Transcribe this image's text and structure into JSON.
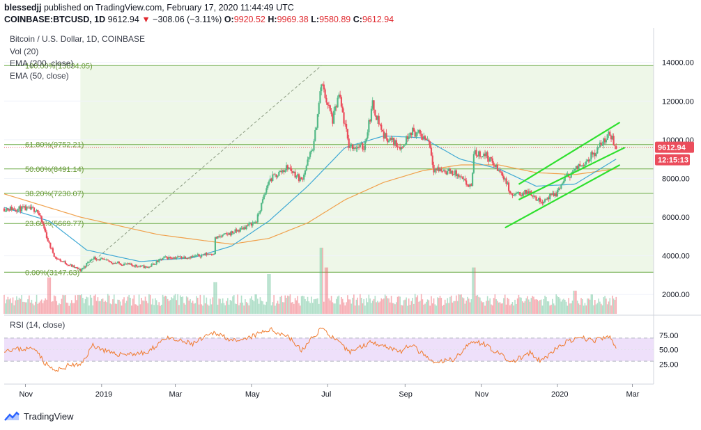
{
  "header": {
    "line1_user": "blessedjj",
    "line1_text": "published on TradingView.com, February 17, 2020 11:44:49 UTC",
    "symbol": "COINBASE:BTCUSD, 1D",
    "last": "9612.94",
    "down_arrow": "▼",
    "change": "−308.06 (−3.11%)",
    "o_label": "O:",
    "o_value": "9920.52",
    "h_label": "H:",
    "h_value": "9969.38",
    "l_label": "L:",
    "l_value": "9580.89",
    "c_label": "C:",
    "c_value": "9612.94"
  },
  "legend": {
    "title": "Bitcoin / U.S. Dollar, 1D, COINBASE",
    "vol": "Vol (20)",
    "ema200": "EMA (200, close)",
    "ema50": "EMA (50, close)"
  },
  "price_badge": "9612.94",
  "time_badge": "12:15:13",
  "rsi_label": "RSI (14, close)",
  "footer_brand": "TradingView",
  "colors": {
    "up": "#53b987",
    "down": "#eb4d5c",
    "ema50": "#3fa9d4",
    "ema200": "#f0a04b",
    "fib": "#6aaa45",
    "channel": "#2ee02e",
    "rsi": "#f07b2e",
    "rsi_band": "#eee0fa",
    "bg_shade": "#eef7e8"
  },
  "chart_data": {
    "type": "candlestick",
    "price_axis": {
      "ticks": [
        2000,
        4000,
        6000,
        8000,
        10000,
        12000,
        14000
      ],
      "tick_labels": [
        "2000.00",
        "4000.00",
        "6000.00",
        "8000.00",
        "10000.00",
        "12000.00",
        "14000.00"
      ],
      "range": [
        1000,
        15500
      ]
    },
    "time_axis": {
      "labels": [
        "Nov",
        "2019",
        "Mar",
        "May",
        "Jul",
        "Sep",
        "Nov",
        "2020",
        "Mar"
      ]
    },
    "fib_levels": [
      {
        "label": "100.00%(13834.05)",
        "price": 13834.05
      },
      {
        "label": "61.80%(9752.21)",
        "price": 9752.21
      },
      {
        "label": "50.00%(8491.14)",
        "price": 8491.14
      },
      {
        "label": "38.20%(7230.07)",
        "price": 7230.07
      },
      {
        "label": "23.60%(5669.77)",
        "price": 5669.77
      },
      {
        "label": "0.00%(3147.63)",
        "price": 3147.63
      }
    ],
    "fib_range": {
      "start": "2018-12-15",
      "end": "2019-06-26"
    },
    "last_price": 9612.94,
    "price_path": [
      [
        "2018-10-15",
        6450
      ],
      [
        "2018-11-10",
        6400
      ],
      [
        "2018-11-15",
        5600
      ],
      [
        "2018-11-20",
        4600
      ],
      [
        "2018-11-25",
        3900
      ],
      [
        "2018-12-07",
        3500
      ],
      [
        "2018-12-15",
        3250
      ],
      [
        "2018-12-25",
        3900
      ],
      [
        "2019-01-10",
        3650
      ],
      [
        "2019-02-07",
        3400
      ],
      [
        "2019-02-20",
        3900
      ],
      [
        "2019-03-15",
        3950
      ],
      [
        "2019-04-01",
        4150
      ],
      [
        "2019-04-02",
        4900
      ],
      [
        "2019-04-20",
        5300
      ],
      [
        "2019-05-05",
        5800
      ],
      [
        "2019-05-15",
        7900
      ],
      [
        "2019-05-30",
        8600
      ],
      [
        "2019-06-10",
        7900
      ],
      [
        "2019-06-20",
        9800
      ],
      [
        "2019-06-26",
        12900
      ],
      [
        "2019-07-05",
        11000
      ],
      [
        "2019-07-10",
        12300
      ],
      [
        "2019-07-18",
        9700
      ],
      [
        "2019-07-30",
        9600
      ],
      [
        "2019-08-06",
        11800
      ],
      [
        "2019-08-15",
        10200
      ],
      [
        "2019-08-30",
        9600
      ],
      [
        "2019-09-05",
        10500
      ],
      [
        "2019-09-20",
        10000
      ],
      [
        "2019-09-24",
        8500
      ],
      [
        "2019-10-10",
        8300
      ],
      [
        "2019-10-24",
        7500
      ],
      [
        "2019-10-26",
        9300
      ],
      [
        "2019-11-05",
        9200
      ],
      [
        "2019-11-20",
        8000
      ],
      [
        "2019-11-25",
        7100
      ],
      [
        "2019-12-10",
        7300
      ],
      [
        "2019-12-18",
        6800
      ],
      [
        "2019-12-31",
        7200
      ],
      [
        "2020-01-07",
        8000
      ],
      [
        "2020-01-20",
        8700
      ],
      [
        "2020-01-31",
        9350
      ],
      [
        "2020-02-09",
        10100
      ],
      [
        "2020-02-12",
        10300
      ],
      [
        "2020-02-17",
        9612.94
      ]
    ],
    "ema50_path": [
      [
        "2018-10-15",
        6500
      ],
      [
        "2018-11-20",
        5800
      ],
      [
        "2018-12-20",
        4300
      ],
      [
        "2019-02-01",
        3700
      ],
      [
        "2019-03-15",
        3900
      ],
      [
        "2019-04-15",
        4500
      ],
      [
        "2019-05-15",
        5800
      ],
      [
        "2019-06-15",
        7600
      ],
      [
        "2019-07-15",
        9600
      ],
      [
        "2019-08-15",
        10200
      ],
      [
        "2019-09-15",
        10100
      ],
      [
        "2019-10-15",
        9000
      ],
      [
        "2019-11-15",
        8500
      ],
      [
        "2019-12-15",
        7600
      ],
      [
        "2020-01-15",
        7700
      ],
      [
        "2020-02-17",
        9000
      ]
    ],
    "ema200_path": [
      [
        "2018-10-15",
        7200
      ],
      [
        "2018-12-15",
        6000
      ],
      [
        "2019-02-15",
        5100
      ],
      [
        "2019-04-15",
        4600
      ],
      [
        "2019-05-15",
        4900
      ],
      [
        "2019-06-15",
        5700
      ],
      [
        "2019-07-15",
        6900
      ],
      [
        "2019-08-15",
        7800
      ],
      [
        "2019-09-15",
        8400
      ],
      [
        "2019-10-15",
        8700
      ],
      [
        "2019-11-15",
        8700
      ],
      [
        "2019-12-15",
        8300
      ],
      [
        "2020-01-15",
        8200
      ],
      [
        "2020-02-17",
        8500
      ]
    ],
    "channel": {
      "upper": [
        [
          "2019-12-01",
          7700
        ],
        [
          "2020-02-20",
          10900
        ]
      ],
      "middle": [
        [
          "2019-12-01",
          6900
        ],
        [
          "2020-02-24",
          9600
        ]
      ],
      "lower": [
        [
          "2019-11-20",
          5450
        ],
        [
          "2020-02-20",
          8700
        ]
      ]
    },
    "rsi": {
      "ticks": [
        25,
        50,
        75
      ],
      "tick_labels": [
        "25.00",
        "50.00",
        "75.00"
      ],
      "bands": [
        30,
        70
      ],
      "path": [
        [
          "2018-10-15",
          50
        ],
        [
          "2018-11-10",
          52
        ],
        [
          "2018-11-15",
          30
        ],
        [
          "2018-11-25",
          12
        ],
        [
          "2018-12-07",
          24
        ],
        [
          "2018-12-15",
          22
        ],
        [
          "2018-12-25",
          58
        ],
        [
          "2019-01-10",
          42
        ],
        [
          "2019-02-07",
          44
        ],
        [
          "2019-02-20",
          70
        ],
        [
          "2019-03-15",
          60
        ],
        [
          "2019-04-02",
          80
        ],
        [
          "2019-04-20",
          62
        ],
        [
          "2019-05-15",
          85
        ],
        [
          "2019-05-30",
          74
        ],
        [
          "2019-06-10",
          48
        ],
        [
          "2019-06-26",
          88
        ],
        [
          "2019-07-18",
          46
        ],
        [
          "2019-08-06",
          64
        ],
        [
          "2019-08-30",
          46
        ],
        [
          "2019-09-05",
          60
        ],
        [
          "2019-09-24",
          26
        ],
        [
          "2019-10-10",
          34
        ],
        [
          "2019-10-26",
          66
        ],
        [
          "2019-11-05",
          58
        ],
        [
          "2019-11-25",
          28
        ],
        [
          "2019-12-10",
          44
        ],
        [
          "2019-12-18",
          30
        ],
        [
          "2020-01-07",
          62
        ],
        [
          "2020-01-20",
          70
        ],
        [
          "2020-01-31",
          66
        ],
        [
          "2020-02-12",
          72
        ],
        [
          "2020-02-17",
          52
        ]
      ]
    },
    "volume": {
      "spikes": [
        [
          "2018-11-20",
          0.55
        ],
        [
          "2019-04-02",
          0.48
        ],
        [
          "2019-05-15",
          0.6
        ],
        [
          "2019-06-26",
          1.0
        ],
        [
          "2019-06-30",
          0.7
        ],
        [
          "2019-10-26",
          0.7
        ],
        [
          "2020-01-15",
          0.35
        ]
      ]
    }
  }
}
